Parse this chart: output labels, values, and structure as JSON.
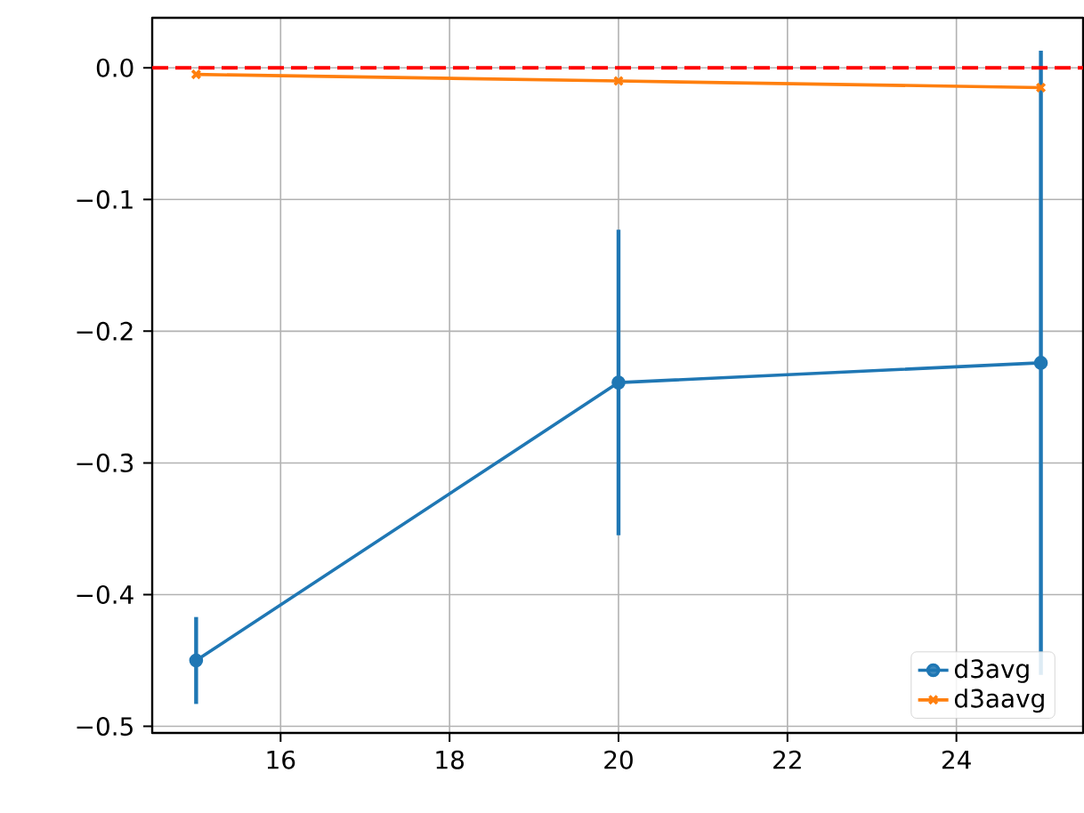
{
  "chart_data": {
    "type": "line",
    "x": [
      15,
      20,
      25
    ],
    "series": [
      {
        "name": "d3avg",
        "color": "#1f77b4",
        "values": [
          -0.45,
          -0.239,
          -0.224
        ],
        "errors": [
          0.033,
          0.116,
          0.237
        ],
        "marker": "circle"
      },
      {
        "name": "d3aavg",
        "color": "#ff7f0e",
        "values": [
          -0.005,
          -0.01,
          -0.015
        ],
        "marker": "cross"
      }
    ],
    "xlim": [
      14.48,
      25.5
    ],
    "ylim": [
      -0.505,
      0.038
    ],
    "xticks": [
      16,
      18,
      20,
      22,
      24
    ],
    "yticks": [
      {
        "value": 0,
        "label": "0.0"
      },
      {
        "value": -0.1,
        "label": "−0.1"
      },
      {
        "value": -0.2,
        "label": "−0.2"
      },
      {
        "value": -0.3,
        "label": "−0.3"
      },
      {
        "value": -0.4,
        "label": "−0.4"
      },
      {
        "value": -0.5,
        "label": "−0.5"
      }
    ],
    "ref_lines": [
      {
        "axis": "y",
        "value": 0,
        "color": "#ff0000",
        "line_style": "dashed"
      }
    ],
    "grid": true,
    "legend": "bottom right",
    "line_style": "solid"
  }
}
